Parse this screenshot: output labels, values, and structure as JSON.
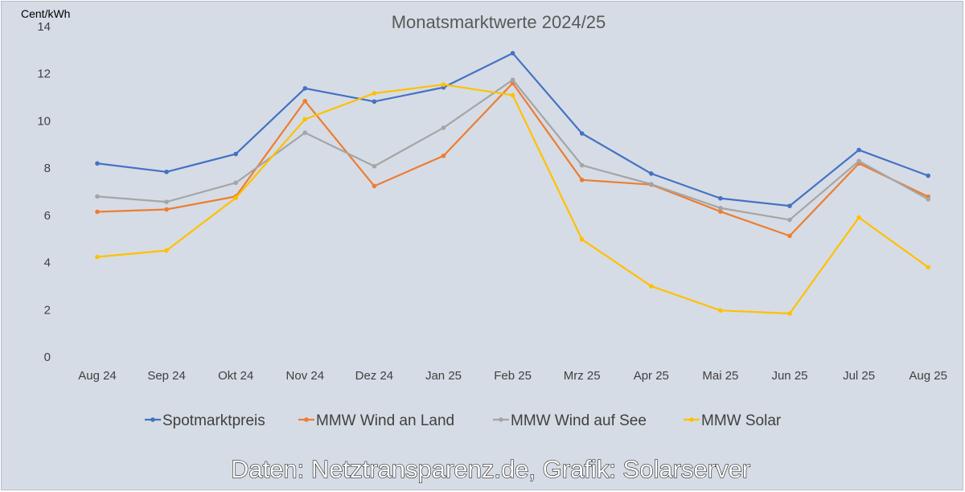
{
  "chart_data": {
    "type": "line",
    "title": "Monatsmarktwerte 2024/25",
    "ylabel": "Cent/kWh",
    "xlabel": "",
    "ylim": [
      0,
      14
    ],
    "yticks": [
      "0",
      "2",
      "4",
      "6",
      "8",
      "10",
      "12",
      "14"
    ],
    "categories": [
      "Aug 24",
      "Sep 24",
      "Okt 24",
      "Nov 24",
      "Dez 24",
      "Jan 25",
      "Feb 25",
      "Mrz 25",
      "Apr 25",
      "Mai 25",
      "Jun 25",
      "Jul 25",
      "Aug 25"
    ],
    "series": [
      {
        "name": "Spotmarktpreis",
        "color": "#4472c4",
        "values": [
          8.2,
          7.84,
          8.6,
          11.38,
          10.82,
          11.42,
          12.87,
          9.47,
          7.77,
          6.72,
          6.4,
          8.77,
          7.68
        ]
      },
      {
        "name": "MMW Wind an Land",
        "color": "#ed7d31",
        "values": [
          6.15,
          6.25,
          6.8,
          10.84,
          7.24,
          8.52,
          11.6,
          7.5,
          7.3,
          6.16,
          5.13,
          8.2,
          6.79
        ]
      },
      {
        "name": "MMW Wind auf See",
        "color": "#a5a5a5",
        "values": [
          6.8,
          6.57,
          7.38,
          9.5,
          8.08,
          9.71,
          11.74,
          8.12,
          7.32,
          6.31,
          5.81,
          8.3,
          6.68
        ]
      },
      {
        "name": "MMW Solar",
        "color": "#ffc000",
        "values": [
          4.24,
          4.51,
          6.74,
          10.07,
          11.17,
          11.54,
          11.09,
          4.98,
          3.0,
          1.97,
          1.84,
          5.91,
          3.8
        ]
      }
    ],
    "grid": false,
    "legend_position": "bottom"
  },
  "credit": "Daten: Netztransparenz.de, Grafik: Solarserver"
}
